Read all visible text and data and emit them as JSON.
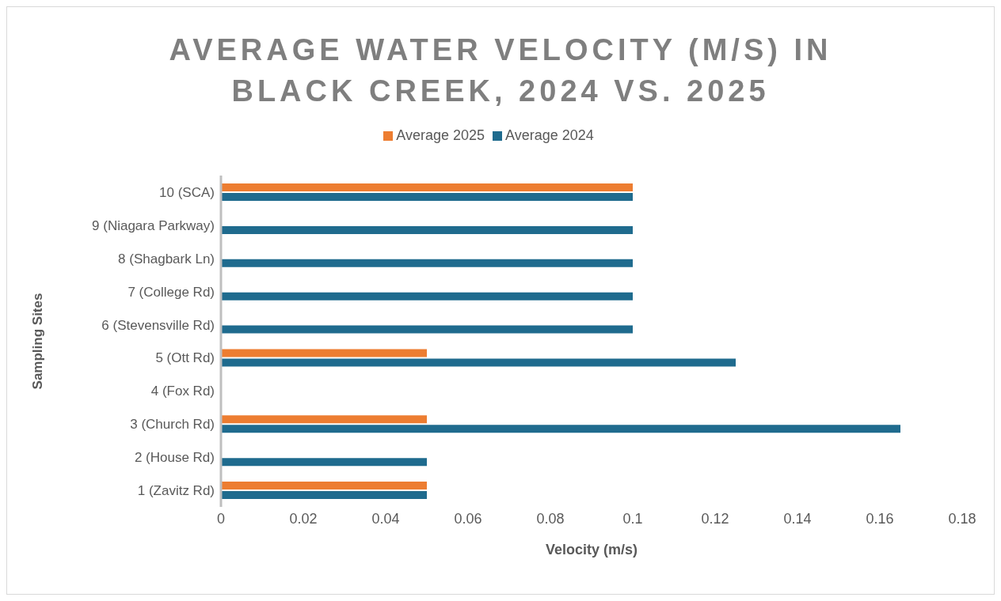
{
  "chart_data": {
    "type": "bar",
    "orientation": "horizontal",
    "title": "AVERAGE WATER VELOCITY (M/S) IN BLACK CREEK, 2024 VS. 2025",
    "xlabel": "Velocity (m/s)",
    "ylabel": "Sampling Sites",
    "categories": [
      "10 (SCA)",
      "9 (Niagara Parkway)",
      "8 (Shagbark Ln)",
      "7 (College Rd)",
      "6 (Stevensville Rd)",
      "5 (Ott Rd)",
      "4 (Fox Rd)",
      "3 (Church Rd)",
      "2 (House Rd)",
      "1 (Zavitz Rd)"
    ],
    "series": [
      {
        "name": "Average 2025",
        "color": "#ed7d31",
        "values": [
          0.1,
          null,
          null,
          null,
          null,
          0.05,
          null,
          0.05,
          null,
          0.05
        ]
      },
      {
        "name": "Average 2024",
        "color": "#1f6b8e",
        "values": [
          0.1,
          0.1,
          0.1,
          0.1,
          0.1,
          0.125,
          null,
          0.165,
          0.05,
          0.05
        ]
      }
    ],
    "xlim": [
      0,
      0.18
    ],
    "xticks": [
      0,
      0.02,
      0.04,
      0.06,
      0.08,
      0.1,
      0.12,
      0.14,
      0.16,
      0.18
    ],
    "grid": false,
    "legend": "top"
  }
}
